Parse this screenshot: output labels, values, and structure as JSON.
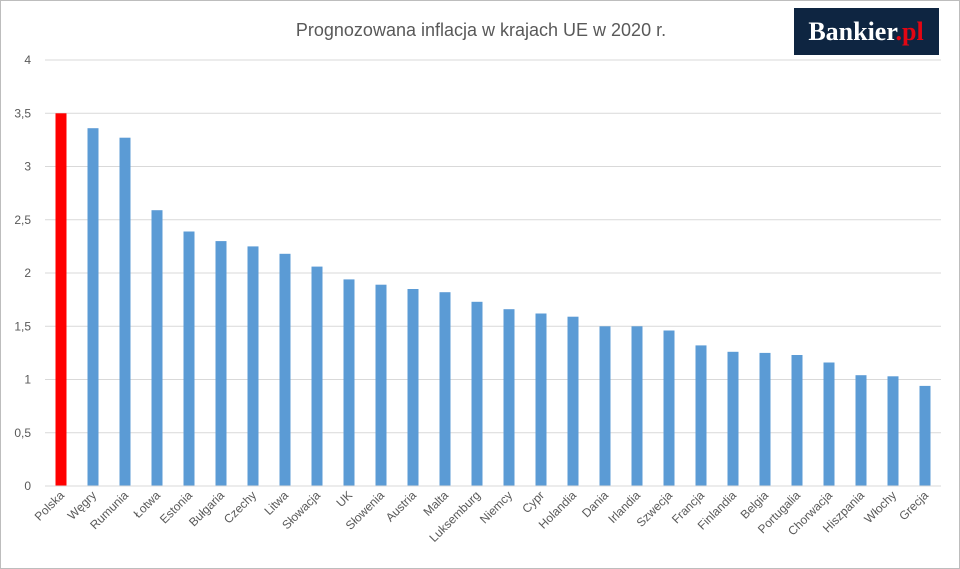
{
  "logo": {
    "text": "Bankier",
    "suffix": ".pl",
    "background": "#0e2541",
    "dot_color": "#e30613"
  },
  "chart_data": {
    "type": "bar",
    "title": "Prognozowana inflacja w krajach UE w 2020 r.",
    "xlabel": "",
    "ylabel": "",
    "ylim": [
      0,
      4
    ],
    "yticks": [
      0,
      0.5,
      1,
      1.5,
      2,
      2.5,
      3,
      3.5,
      4
    ],
    "ytick_labels": [
      "0",
      "0,5",
      "1",
      "1,5",
      "2",
      "2,5",
      "3",
      "3,5",
      "4"
    ],
    "grid": true,
    "legend": "none",
    "categories": [
      "Polska",
      "Węgry",
      "Rumunia",
      "Łotwa",
      "Estonia",
      "Bułgaria",
      "Czechy",
      "Litwa",
      "Słowacja",
      "UK",
      "Słowenia",
      "Austria",
      "Malta",
      "Luksemburg",
      "Niemcy",
      "Cypr",
      "Holandia",
      "Dania",
      "Irlandia",
      "Szwecja",
      "Francja",
      "Finlandia",
      "Belgia",
      "Portugalia",
      "Chorwacja",
      "Hiszpania",
      "Włochy",
      "Grecja"
    ],
    "values": [
      3.5,
      3.36,
      3.27,
      2.59,
      2.39,
      2.3,
      2.25,
      2.18,
      2.06,
      1.94,
      1.89,
      1.85,
      1.82,
      1.73,
      1.66,
      1.62,
      1.59,
      1.5,
      1.5,
      1.46,
      1.32,
      1.26,
      1.25,
      1.23,
      1.16,
      1.04,
      1.03,
      0.94
    ],
    "bar_color": "#5b9bd5",
    "highlight_color": "#ff0000",
    "highlight_category": "Polska",
    "grid_color": "#d9d9d9"
  }
}
